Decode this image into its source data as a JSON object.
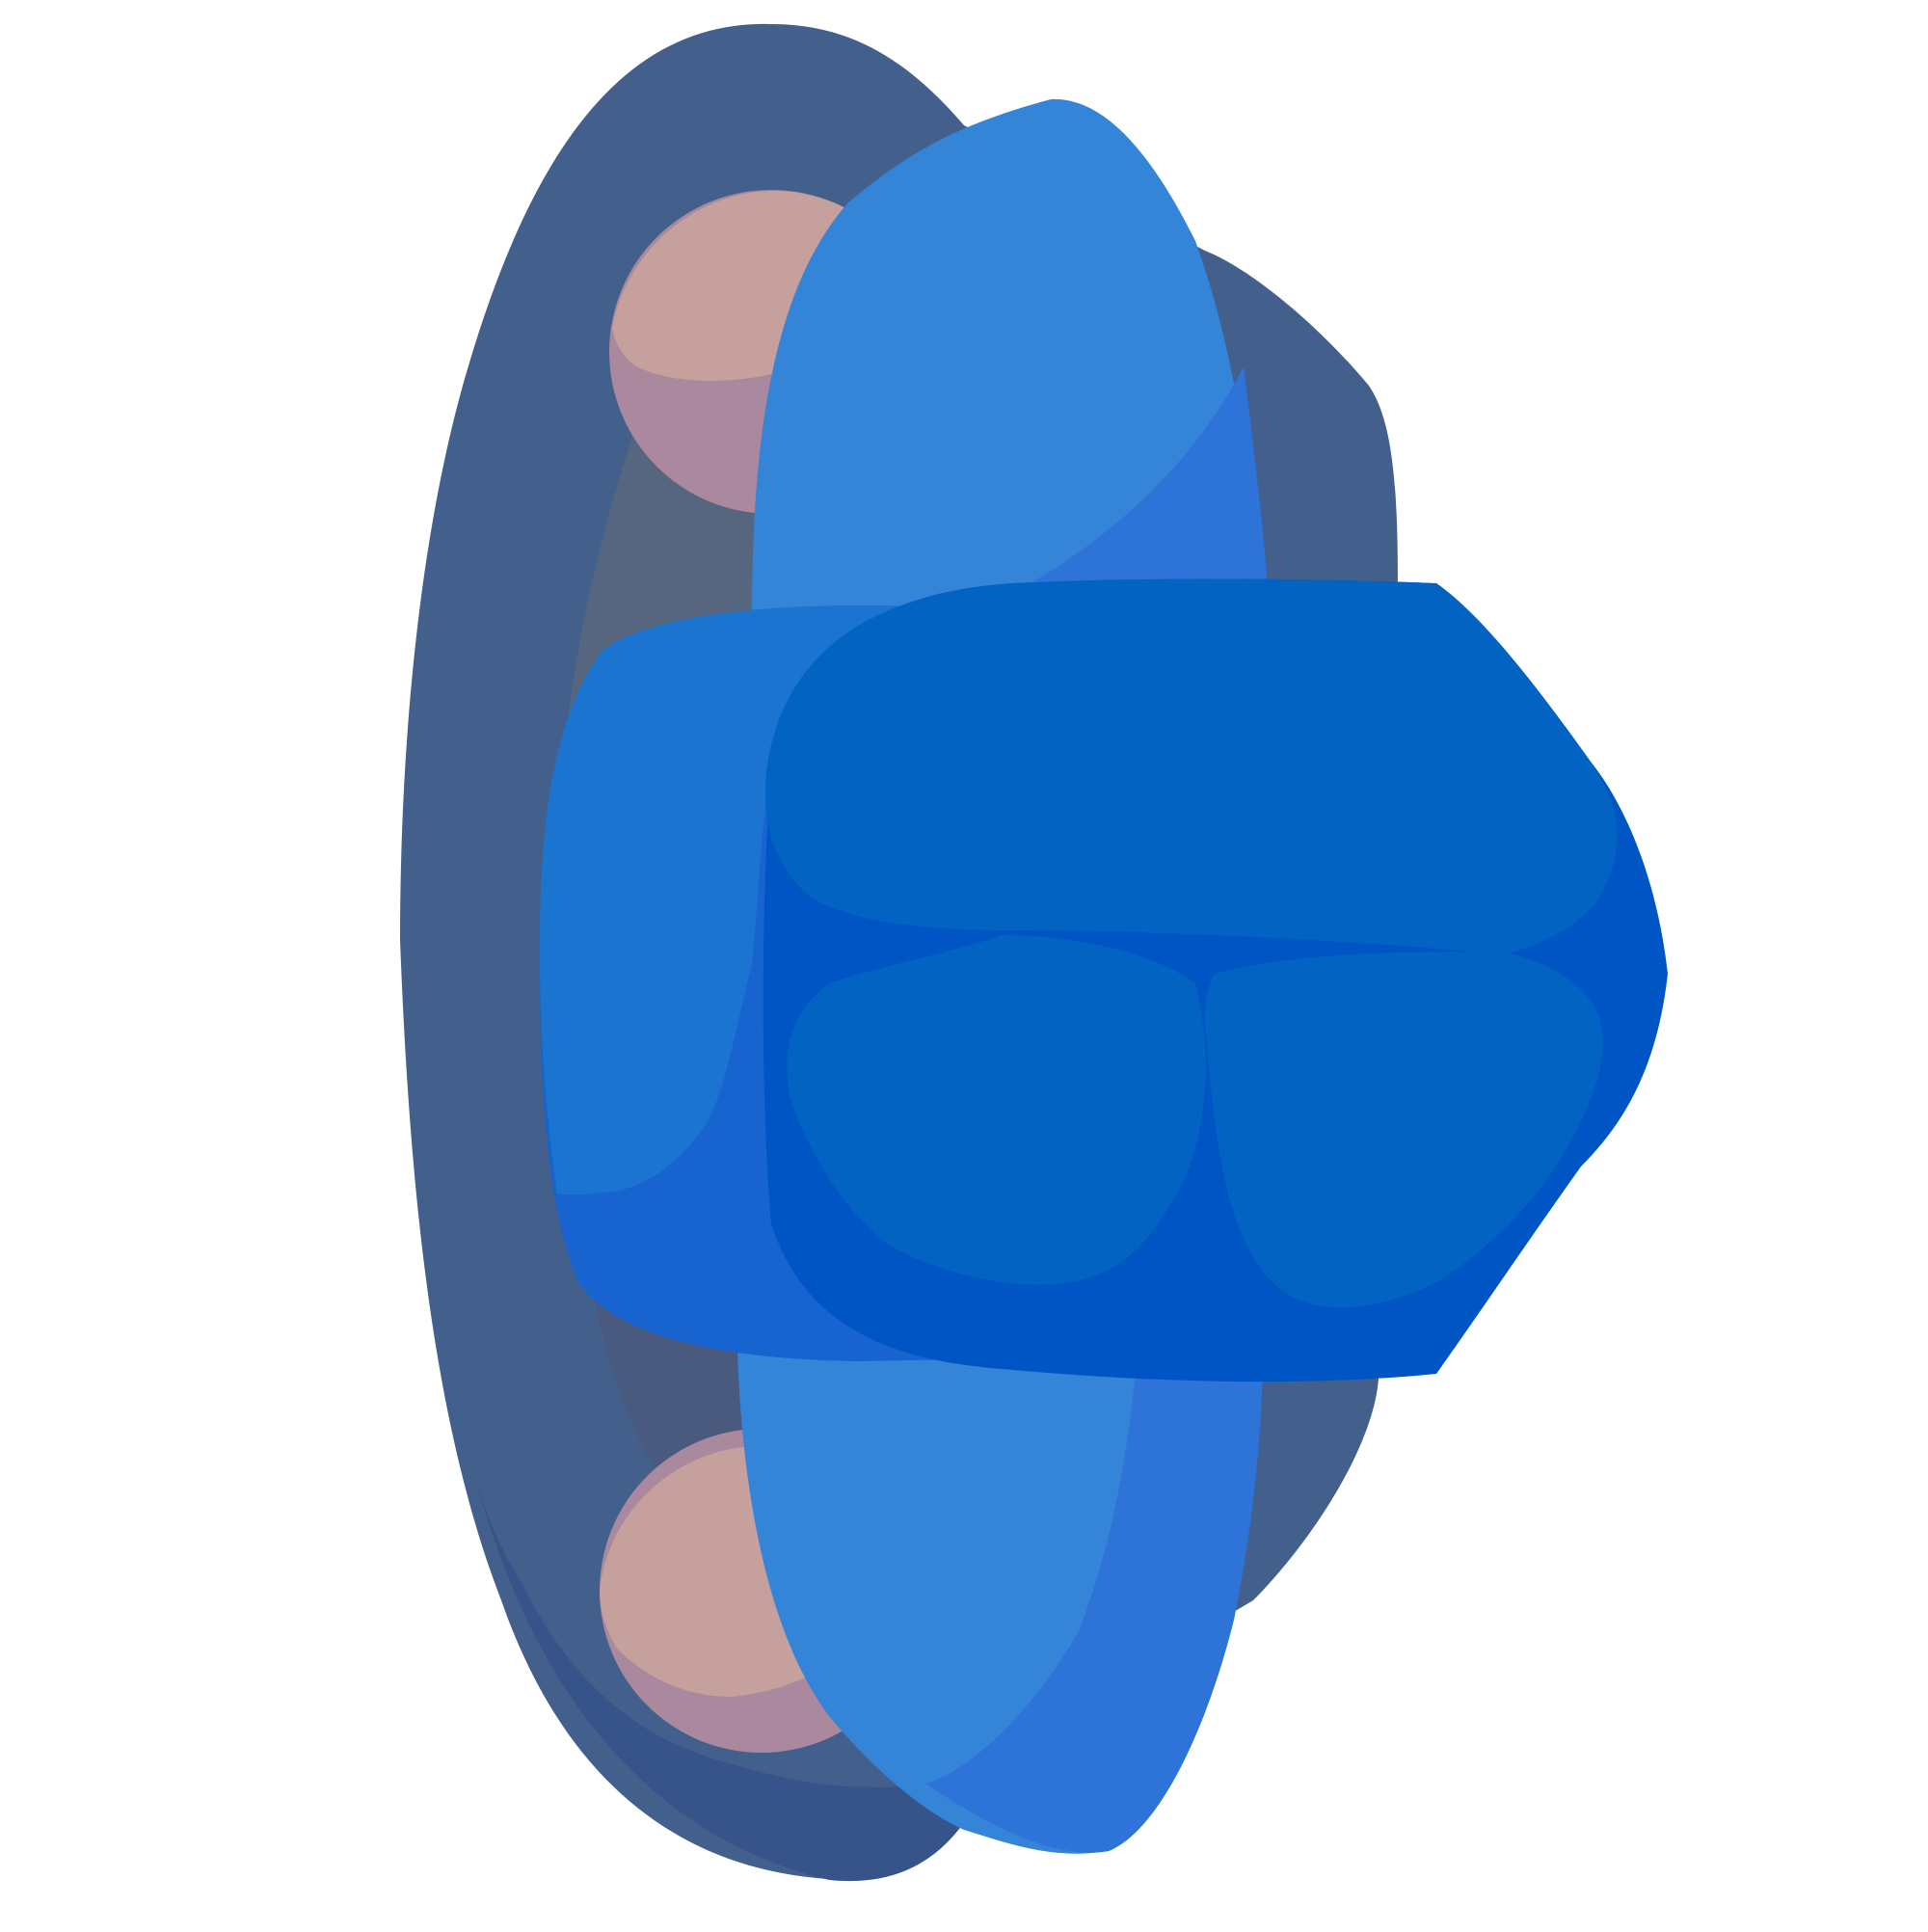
{
  "icon": {
    "name": "blue-button-cluster-icon",
    "colors": {
      "background": "#ffffff",
      "outer_shell": "#42608b",
      "outer_shell_shadow": "#36538a",
      "inner_shell": "#55667e",
      "inner_shell_dark": "#4a5a7f",
      "bolt_light": "#c6a09c",
      "bolt_shadow": "#aa889d",
      "wing_light": "#3485d8",
      "wing_shadow": "#2d73d8",
      "band_light": "#1b75d0",
      "band_shadow": "#1763d0",
      "head_top": "#0263c2",
      "head_shadow": "#0055c5"
    }
  }
}
